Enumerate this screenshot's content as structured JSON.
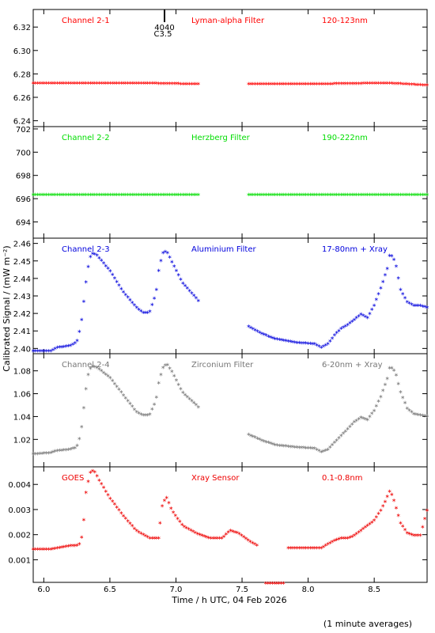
{
  "chart_data": {
    "type": "scatter",
    "xlabel": "Time / h UTC, 04 Feb 2026",
    "ylabel": "Calibrated Signal / (mW m⁻²)",
    "footnote": "(1 minute averages)",
    "xlim": [
      5.92,
      8.9
    ],
    "xticks": [
      "6.0",
      "6.5",
      "7.0",
      "7.5",
      "8.0",
      "8.5"
    ],
    "marker_top": "4040",
    "marker_bottom": "C3.5",
    "panels": [
      {
        "channel": "Channel 2-1",
        "filter": "Lyman-alpha Filter",
        "band": "120-123nm",
        "color": "#ff0000",
        "ylim": [
          6.235,
          6.335
        ],
        "yticks": [
          "6.24",
          "6.26",
          "6.28",
          "6.30",
          "6.32"
        ],
        "segments": [
          {
            "x": [
              5.92,
              6.3,
              6.7,
              7.18
            ],
            "y": [
              6.273,
              6.273,
              6.273,
              6.272
            ]
          },
          {
            "x": [
              7.55,
              8.0,
              8.6,
              8.9
            ],
            "y": [
              6.272,
              6.272,
              6.273,
              6.271
            ]
          }
        ]
      },
      {
        "channel": "Channel 2-2",
        "filter": "Herzberg Filter",
        "band": "190-222nm",
        "color": "#00dd00",
        "ylim": [
          692.6,
          702.2
        ],
        "yticks": [
          "694",
          "696",
          "698",
          "700",
          "702"
        ],
        "segments": [
          {
            "x": [
              5.92,
              7.18
            ],
            "y": [
              696.4,
              696.4
            ]
          },
          {
            "x": [
              7.55,
              8.9
            ],
            "y": [
              696.4,
              696.4
            ]
          }
        ]
      },
      {
        "channel": "Channel 2-3",
        "filter": "Aluminium Filter",
        "band": "17-80nm + Xray",
        "color": "#0000dd",
        "ylim": [
          2.397,
          2.463
        ],
        "yticks": [
          "2.40",
          "2.41",
          "2.42",
          "2.43",
          "2.44",
          "2.45",
          "2.46"
        ],
        "segments": [
          {
            "x": [
              5.92,
              6.05,
              6.1,
              6.2,
              6.25,
              6.28,
              6.3,
              6.33,
              6.36,
              6.4,
              6.5,
              6.6,
              6.7,
              6.75,
              6.8,
              6.85,
              6.87,
              6.9,
              6.93,
              6.97,
              7.05,
              7.18
            ],
            "y": [
              2.399,
              2.399,
              2.401,
              2.402,
              2.404,
              2.413,
              2.425,
              2.445,
              2.455,
              2.454,
              2.445,
              2.433,
              2.424,
              2.421,
              2.421,
              2.432,
              2.445,
              2.455,
              2.456,
              2.45,
              2.438,
              2.427
            ]
          },
          {
            "x": [
              7.55,
              7.65,
              7.75,
              7.9,
              8.05,
              8.1,
              8.15,
              8.2,
              8.25,
              8.3,
              8.35,
              8.4,
              8.45,
              8.5,
              8.55,
              8.6,
              8.62,
              8.66,
              8.7,
              8.75,
              8.8,
              8.85,
              8.9
            ],
            "y": [
              2.413,
              2.409,
              2.406,
              2.404,
              2.403,
              2.401,
              2.403,
              2.408,
              2.412,
              2.414,
              2.417,
              2.42,
              2.418,
              2.425,
              2.435,
              2.446,
              2.455,
              2.45,
              2.434,
              2.427,
              2.425,
              2.425,
              2.424
            ]
          }
        ]
      },
      {
        "channel": "Channel 2-4",
        "filter": "Zirconium Filter",
        "band": "6-20nm + Xray",
        "color": "#777777",
        "ylim": [
          0.996,
          1.095
        ],
        "yticks": [
          "1.02",
          "1.04",
          "1.06",
          "1.08"
        ],
        "segments": [
          {
            "x": [
              5.92,
              6.05,
              6.1,
              6.2,
              6.25,
              6.28,
              6.3,
              6.33,
              6.36,
              6.4,
              6.5,
              6.6,
              6.7,
              6.75,
              6.8,
              6.85,
              6.87,
              6.9,
              6.93,
              6.97,
              7.05,
              7.18
            ],
            "y": [
              1.008,
              1.009,
              1.011,
              1.012,
              1.014,
              1.025,
              1.045,
              1.075,
              1.085,
              1.084,
              1.075,
              1.06,
              1.045,
              1.042,
              1.042,
              1.055,
              1.07,
              1.083,
              1.087,
              1.08,
              1.062,
              1.048
            ]
          },
          {
            "x": [
              7.55,
              7.65,
              7.75,
              7.9,
              8.05,
              8.1,
              8.15,
              8.2,
              8.25,
              8.3,
              8.35,
              8.4,
              8.45,
              8.5,
              8.55,
              8.6,
              8.62,
              8.66,
              8.7,
              8.75,
              8.8,
              8.85,
              8.9
            ],
            "y": [
              1.025,
              1.02,
              1.016,
              1.014,
              1.013,
              1.01,
              1.012,
              1.018,
              1.024,
              1.03,
              1.036,
              1.04,
              1.038,
              1.046,
              1.058,
              1.074,
              1.085,
              1.08,
              1.062,
              1.048,
              1.043,
              1.042,
              1.041
            ]
          }
        ]
      },
      {
        "channel": "GOES",
        "filter": "Xray Sensor",
        "band": "0.1-0.8nm",
        "color": "#ee0000",
        "ylim": [
          0.0001,
          0.0047
        ],
        "yticks": [
          "0.001",
          "0.002",
          "0.003",
          "0.004"
        ],
        "segments": [
          {
            "x": [
              5.92,
              6.05,
              6.1,
              6.2,
              6.25,
              6.28,
              6.3,
              6.32,
              6.35,
              6.38,
              6.42,
              6.5,
              6.6,
              6.7,
              6.8,
              6.87
            ],
            "y": [
              0.00145,
              0.00145,
              0.0015,
              0.0016,
              0.0016,
              0.0017,
              0.0024,
              0.0037,
              0.0045,
              0.0046,
              0.0042,
              0.0035,
              0.0028,
              0.0022,
              0.0019,
              0.0019
            ]
          },
          {
            "x": [
              6.88,
              6.9,
              6.93,
              6.97,
              7.05,
              7.15,
              7.25,
              7.35,
              7.41,
              7.47,
              7.55,
              7.62
            ],
            "y": [
              0.0025,
              0.0033,
              0.0035,
              0.003,
              0.0024,
              0.0021,
              0.0019,
              0.0019,
              0.0022,
              0.0021,
              0.0018,
              0.0016
            ]
          },
          {
            "x": [
              7.68,
              7.82
            ],
            "y": [
              0.0001,
              0.0001
            ]
          },
          {
            "x": [
              7.85,
              8.0,
              8.05,
              8.1,
              8.13,
              8.2,
              8.25,
              8.3,
              8.35,
              8.4,
              8.45,
              8.5,
              8.55,
              8.58,
              8.62,
              8.65,
              8.7,
              8.75,
              8.8,
              8.85,
              8.9
            ],
            "y": [
              0.0015,
              0.0015,
              0.0015,
              0.0015,
              0.0016,
              0.0018,
              0.0019,
              0.0019,
              0.002,
              0.0022,
              0.0024,
              0.0026,
              0.003,
              0.0033,
              0.0038,
              0.0034,
              0.0025,
              0.0021,
              0.002,
              0.002,
              0.003
            ]
          }
        ]
      }
    ]
  }
}
